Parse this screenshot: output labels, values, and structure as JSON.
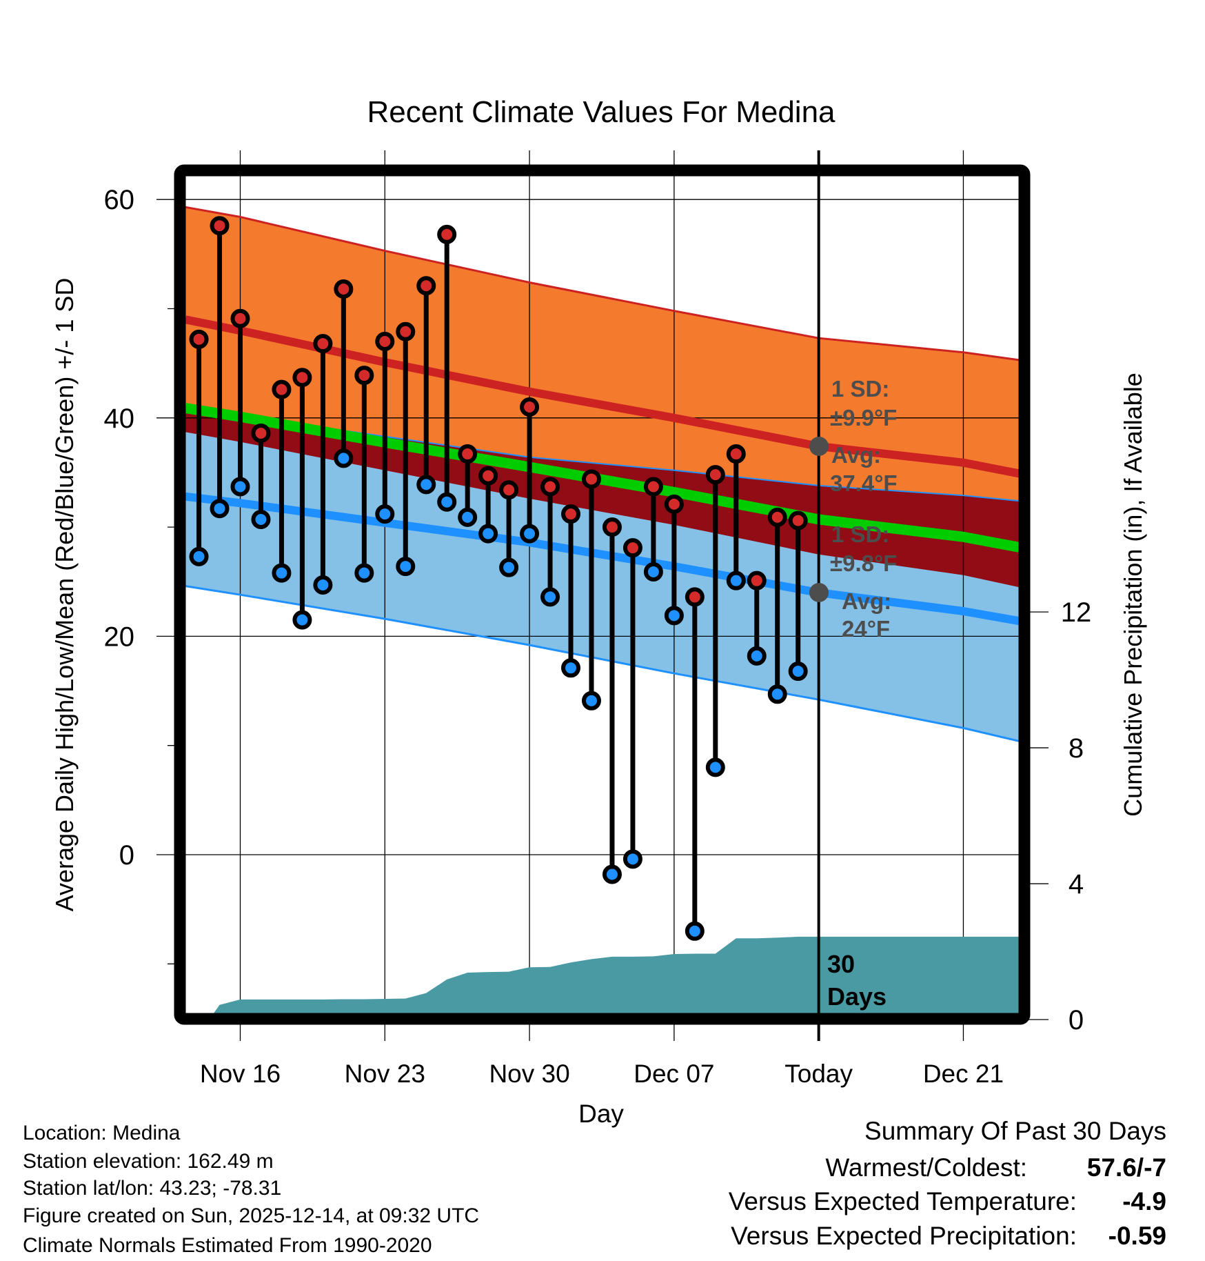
{
  "chart_data": {
    "type": "line",
    "title": "Recent Climate Values For Medina",
    "xlabel": "Day",
    "ylabel": "Average Daily High/Low/Mean (Red/Blue/Green) +/- 1 SD",
    "y2label": "Cumulative Precipitation (in), If Available",
    "x_unit": "day of Nov (Dec = 30 + day)",
    "xlim": [
      13.35,
      53.7
    ],
    "ylim": [
      -14.5,
      62.2
    ],
    "y2lim": [
      0,
      24
    ],
    "grid": true,
    "x_ticks": [
      {
        "x": 16,
        "label": "Nov 16"
      },
      {
        "x": 23,
        "label": "Nov 23"
      },
      {
        "x": 30,
        "label": "Nov 30"
      },
      {
        "x": 37,
        "label": "Dec 07"
      },
      {
        "x": 44,
        "label": "Today"
      },
      {
        "x": 51,
        "label": "Dec 21"
      }
    ],
    "y_ticks": [
      0,
      20,
      40,
      60
    ],
    "y_minor_ticks": [
      -10,
      10,
      30,
      50
    ],
    "y2_ticks": [
      0,
      4,
      8,
      12
    ],
    "today": 44,
    "days": [
      14,
      15,
      16,
      17,
      18,
      19,
      20,
      21,
      22,
      23,
      24,
      25,
      26,
      27,
      28,
      29,
      30,
      31,
      32,
      33,
      34,
      35,
      36,
      37,
      38,
      39,
      40,
      41,
      42,
      43
    ],
    "highs": [
      47.2,
      57.6,
      49.1,
      38.6,
      42.6,
      43.7,
      46.8,
      51.8,
      43.9,
      47.0,
      47.9,
      52.1,
      56.8,
      36.7,
      34.7,
      33.4,
      41.0,
      33.7,
      31.2,
      34.4,
      30.0,
      28.1,
      33.7,
      32.1,
      23.6,
      34.8,
      36.7,
      25.1,
      30.9,
      30.6
    ],
    "lows": [
      27.3,
      31.7,
      33.7,
      30.7,
      25.8,
      21.5,
      24.7,
      36.3,
      25.8,
      31.2,
      26.4,
      33.9,
      32.3,
      30.9,
      29.4,
      26.3,
      29.4,
      23.6,
      17.1,
      14.1,
      -1.8,
      -0.4,
      25.9,
      21.9,
      -7.0,
      8.0,
      25.1,
      18.2,
      14.7,
      16.8
    ],
    "normals": {
      "x": [
        13.35,
        16,
        23,
        30,
        37,
        44,
        51,
        53.7
      ],
      "high_upper": [
        59.3,
        58.4,
        55.3,
        52.4,
        49.8,
        47.3,
        46.0,
        45.3
      ],
      "high_mean": [
        49.0,
        48.0,
        45.1,
        42.4,
        40.0,
        37.4,
        35.9,
        34.9
      ],
      "high_lower": [
        38.7,
        37.8,
        35.2,
        32.6,
        30.2,
        27.5,
        25.6,
        24.5
      ],
      "low_upper": [
        41.0,
        40.2,
        38.3,
        36.4,
        35.2,
        33.8,
        32.9,
        32.4
      ],
      "low_mean": [
        32.8,
        32.2,
        30.4,
        28.6,
        26.4,
        24.0,
        22.3,
        21.4
      ],
      "low_lower": [
        24.6,
        23.8,
        21.6,
        19.2,
        16.6,
        14.2,
        11.6,
        10.4
      ]
    },
    "precip": {
      "x": [
        13.35,
        14.5,
        15,
        16,
        17,
        18,
        19,
        20,
        21,
        22,
        23,
        24,
        25,
        26,
        27,
        28,
        29,
        30,
        31,
        32,
        33,
        34,
        35,
        36,
        37,
        38,
        39,
        40,
        41,
        42,
        43,
        44,
        53.7
      ],
      "cumulative_in": [
        0,
        0,
        0.43,
        0.59,
        0.59,
        0.59,
        0.59,
        0.59,
        0.6,
        0.6,
        0.61,
        0.62,
        0.78,
        1.18,
        1.38,
        1.4,
        1.41,
        1.54,
        1.55,
        1.68,
        1.78,
        1.85,
        1.85,
        1.86,
        1.93,
        1.94,
        1.94,
        2.39,
        2.39,
        2.41,
        2.44,
        2.44,
        2.44
      ]
    },
    "annotations": {
      "high_sd_label": "1 SD:",
      "high_sd_value": "±9.9°F",
      "high_avg_label": "Avg:",
      "high_avg_value": "37.4°F",
      "low_sd_label": "1 SD:",
      "low_sd_value": "±9.8°F",
      "low_avg_label": "Avg:",
      "low_avg_value": "24°F",
      "high_avg": 37.4,
      "low_avg": 24,
      "period_line1": "30",
      "period_line2": "Days"
    },
    "colors": {
      "high_band": "#f47a2e",
      "high_line": "#cc2222",
      "low_band": "#85c1e6",
      "low_line": "#1e90ff",
      "overlap": "#910c14",
      "mean_line": "#00cc00",
      "precip": "#4a9aa3",
      "high_dot": "#d42a2a",
      "low_dot": "#1e90ff",
      "annotation": "#4d4d4d"
    }
  },
  "footer": {
    "location": "Location: Medina",
    "elevation": "Station elevation: 162.49 m",
    "latlon": "Station lat/lon: 43.23; -78.31",
    "created": "Figure created on Sun, 2025-12-14, at 09:32 UTC",
    "normals": "Climate Normals Estimated From 1990-2020"
  },
  "summary": {
    "title": "Summary Of Past 30 Days",
    "warmest_label": "Warmest/Coldest:",
    "warmest_value": "57.6/-7",
    "temp_label": "Versus Expected Temperature:",
    "temp_value": "-4.9",
    "temp_color": "#1e90ff",
    "precip_label": "Versus Expected Precipitation:",
    "precip_value": "-0.59",
    "precip_color": "#a0522d"
  }
}
